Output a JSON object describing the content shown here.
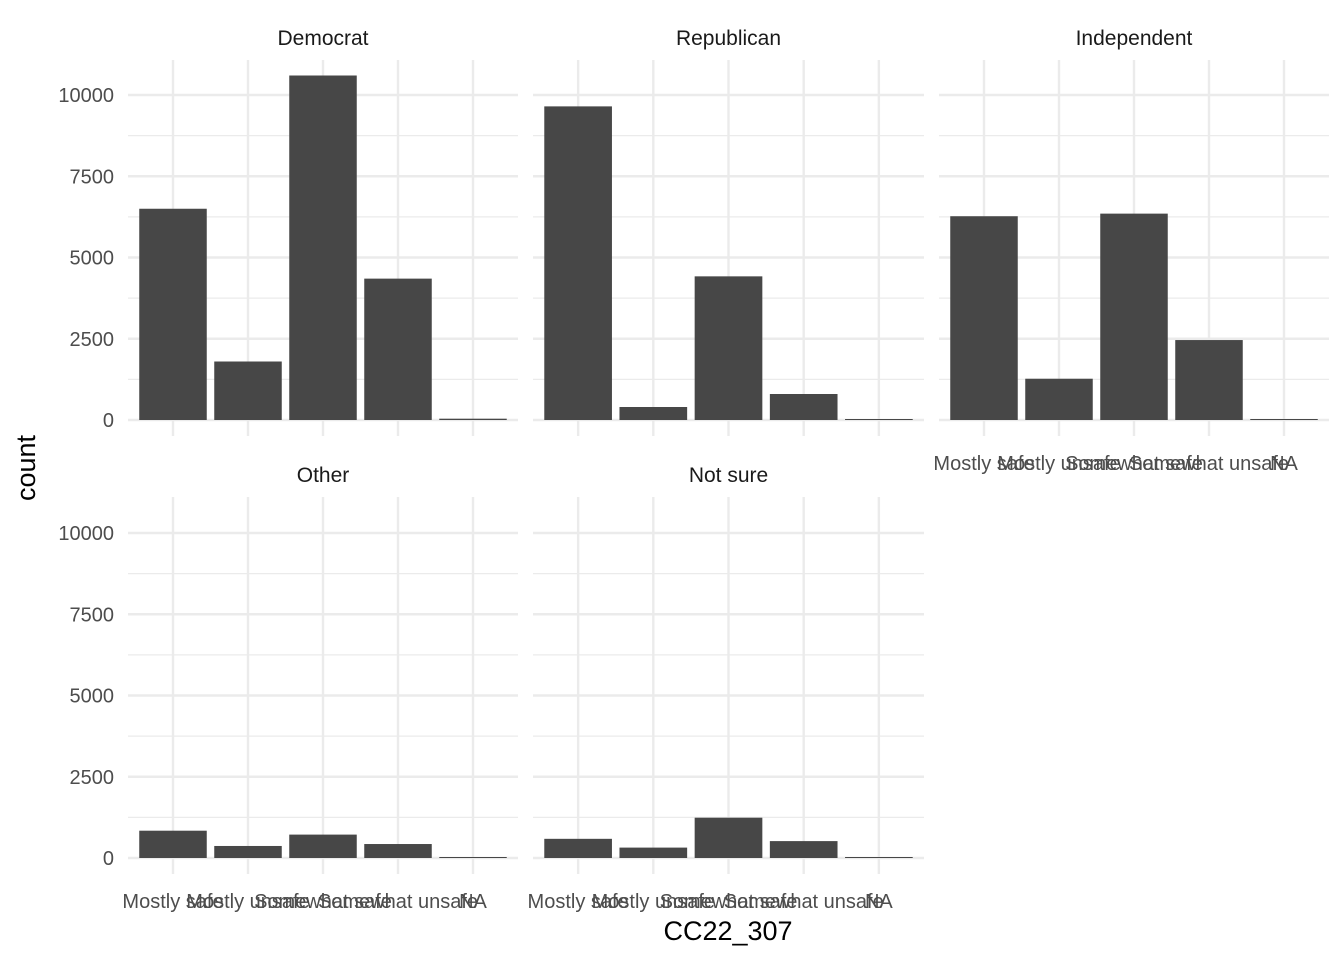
{
  "chart_data": {
    "type": "bar",
    "xlabel": "CC22_307",
    "ylabel": "count",
    "ylim": [
      0,
      11000
    ],
    "yticks": [
      0,
      2500,
      5000,
      7500,
      10000
    ],
    "ytick_labels": [
      "0",
      "2500",
      "5000",
      "7500",
      "10000"
    ],
    "categories": [
      "Mostly safe",
      "Mostly unsafe",
      "Somewhat safe",
      "Somewhat unsafe",
      "NA"
    ],
    "grid": true,
    "legend": "none",
    "bar_color": "#474747",
    "panels": [
      {
        "name": "Democrat",
        "values": [
          6500,
          1800,
          10600,
          4350,
          40
        ]
      },
      {
        "name": "Republican",
        "values": [
          9650,
          400,
          4420,
          800,
          30
        ]
      },
      {
        "name": "Independent",
        "values": [
          6270,
          1270,
          6350,
          2460,
          30
        ]
      },
      {
        "name": "Other",
        "values": [
          840,
          370,
          720,
          430,
          20
        ]
      },
      {
        "name": "Not sure",
        "values": [
          590,
          320,
          1240,
          520,
          20
        ]
      }
    ]
  }
}
